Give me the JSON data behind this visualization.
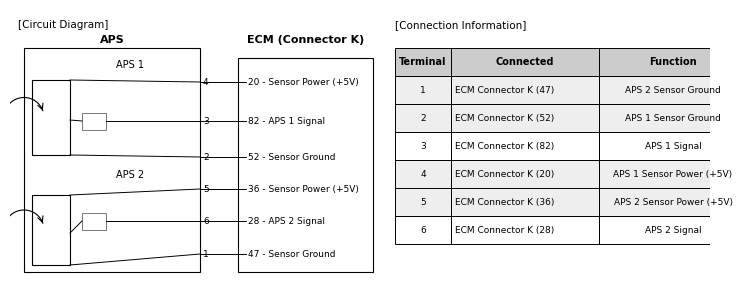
{
  "title_left": "[Circuit Diagram]",
  "title_right": "[Connection Information]",
  "aps_label": "APS",
  "ecm_label": "ECM (Connector K)",
  "aps1_label": "APS 1",
  "aps2_label": "APS 2",
  "table_headers": [
    "Terminal",
    "Connected",
    "Function"
  ],
  "table_rows": [
    [
      "1",
      "ECM Connector K (47)",
      "APS 2 Sensor Ground"
    ],
    [
      "2",
      "ECM Connector K (52)",
      "APS 1 Sensor Ground"
    ],
    [
      "3",
      "ECM Connector K (82)",
      "APS 1 Signal"
    ],
    [
      "4",
      "ECM Connector K (20)",
      "APS 1 Sensor Power (+5V)"
    ],
    [
      "5",
      "ECM Connector K (36)",
      "APS 2 Sensor Power (+5V)"
    ],
    [
      "6",
      "ECM Connector K (28)",
      "APS 2 Signal"
    ]
  ],
  "ecm_entries": [
    "20 - Sensor Power (+5V)",
    "82 - APS 1 Signal",
    "52 - Sensor Ground",
    "36 - Sensor Power (+5V)",
    "28 - APS 2 Signal",
    "47 - Sensor Ground"
  ],
  "aps_pins": [
    "4",
    "3",
    "2",
    "5",
    "6",
    "1"
  ],
  "bg_color": "#ffffff",
  "header_bg": "#cccccc",
  "shade_rows": [
    0,
    1,
    3,
    4
  ],
  "shade_color": "#eeeeee"
}
